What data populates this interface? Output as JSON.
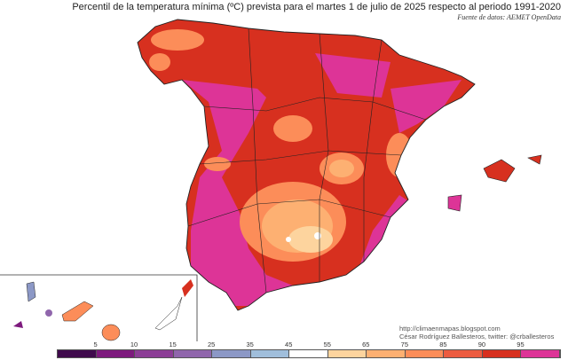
{
  "title": "Percentil de la temperatura mínima (ºC) prevista para el martes 1 de julio de 2025 respecto al periodo 1991-2020",
  "source": "Fuente de datos: AEMET OpenData",
  "credit": {
    "url": "http://climaenmapas.blogspot.com",
    "author": "César Rodríguez Ballesteros, twitter: @crballesteros"
  },
  "legend": {
    "ticks": [
      "5",
      "10",
      "15",
      "25",
      "35",
      "45",
      "55",
      "65",
      "75",
      "85",
      "90",
      "95"
    ],
    "colors": [
      "#3f0a4c",
      "#7d1a7d",
      "#8c3e96",
      "#9066ac",
      "#8c98c6",
      "#a0bedb",
      "#ffffff",
      "#fdd49e",
      "#fdb072",
      "#fc8d59",
      "#ec5c40",
      "#d7301f",
      "#dd3497"
    ]
  }
}
